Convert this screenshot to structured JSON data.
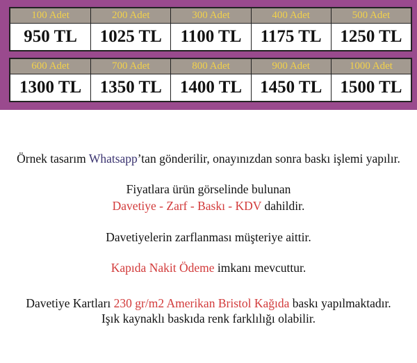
{
  "colors": {
    "band": "#9a4a8e",
    "header_bg": "#a39a90",
    "header_text": "#f3d24a",
    "highlight_red": "#d23a3a",
    "highlight_blue": "#3a3370"
  },
  "prices": [
    [
      {
        "qty": "100 Adet",
        "price": "950 TL"
      },
      {
        "qty": "200 Adet",
        "price": "1025 TL"
      },
      {
        "qty": "300 Adet",
        "price": "1100 TL"
      },
      {
        "qty": "400 Adet",
        "price": "1175 TL"
      },
      {
        "qty": "500 Adet",
        "price": "1250 TL"
      }
    ],
    [
      {
        "qty": "600 Adet",
        "price": "1300 TL"
      },
      {
        "qty": "700 Adet",
        "price": "1350 TL"
      },
      {
        "qty": "800 Adet",
        "price": "1400 TL"
      },
      {
        "qty": "900 Adet",
        "price": "1450 TL"
      },
      {
        "qty": "1000 Adet",
        "price": "1500 TL"
      }
    ]
  ],
  "notes": {
    "l1a": "Örnek tasarım ",
    "l1b": "Whatsapp",
    "l1c": "’tan gönderilir, onayınızdan sonra baskı işlemi yapılır.",
    "l2": "Fiyatlara ürün görselinde bulunan",
    "l3a": "Davetiye - Zarf - Baskı - KDV",
    "l3b": " dahildir.",
    "l4": "Davetiyelerin zarflanması müşteriye aittir.",
    "l5a": "Kapıda Nakit Ödeme",
    "l5b": " imkanı mevcuttur.",
    "l6a": "Davetiye Kartları ",
    "l6b": "230 gr/m2 Amerikan Bristol Kağıda",
    "l6c": " baskı yapılmaktadır.",
    "l7": "Işık kaynaklı baskıda renk farklılığı olabilir."
  }
}
